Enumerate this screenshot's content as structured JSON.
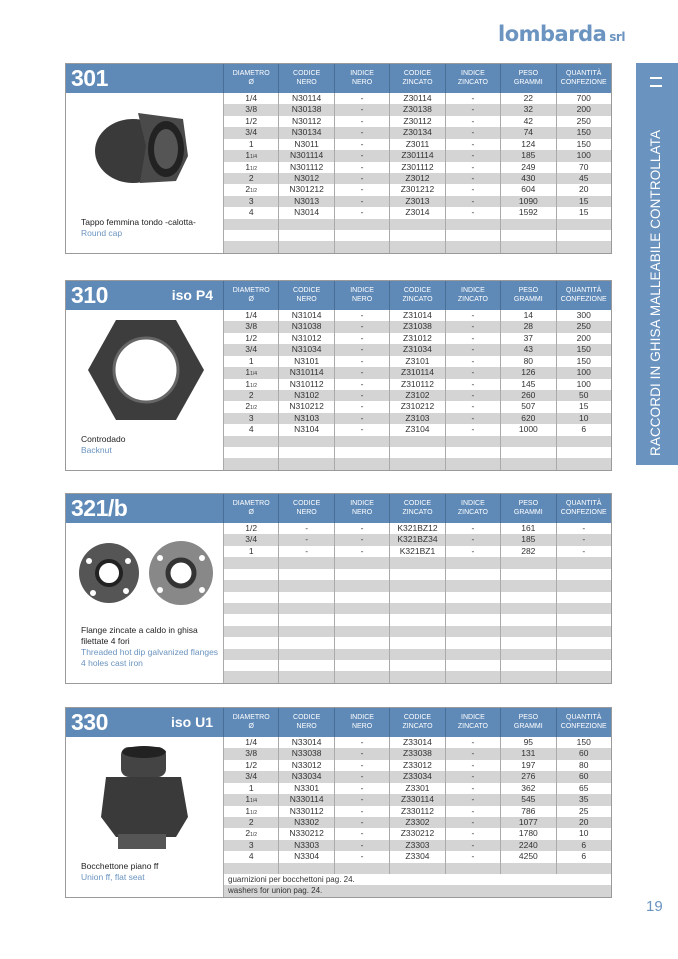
{
  "brand": {
    "name": "lombarda",
    "suffix": "srl",
    "color": "#6a93bf"
  },
  "sidebar": {
    "title": "RACCORDI IN GHISA MALLEABILE CONTROLLATA",
    "icon": "double-bar-icon"
  },
  "page_number": "19",
  "columns": [
    "DIAMETRO Ø",
    "CODICE NERO",
    "INDICE NERO",
    "CODICE ZINCATO",
    "INDICE ZINCATO",
    "PESO GRAMMI",
    "QUANTITÀ CONFEZIONE"
  ],
  "sections": [
    {
      "code": "301",
      "iso": "",
      "desc_it": "Tappo femmina tondo -calotta-",
      "desc_en": "Round cap",
      "image": "round-cap",
      "rows": [
        [
          "1/4",
          "N30114",
          "-",
          "Z30114",
          "-",
          "22",
          "700"
        ],
        [
          "3/8",
          "N30138",
          "-",
          "Z30138",
          "-",
          "32",
          "200"
        ],
        [
          "1/2",
          "N30112",
          "-",
          "Z30112",
          "-",
          "42",
          "250"
        ],
        [
          "3/4",
          "N30134",
          "-",
          "Z30134",
          "-",
          "74",
          "150"
        ],
        [
          "1",
          "N3011",
          "-",
          "Z3011",
          "-",
          "124",
          "150"
        ],
        [
          "1 1/4",
          "N301114",
          "-",
          "Z301114",
          "-",
          "185",
          "100"
        ],
        [
          "1 1/2",
          "N301112",
          "-",
          "Z301112",
          "-",
          "249",
          "70"
        ],
        [
          "2",
          "N3012",
          "-",
          "Z3012",
          "-",
          "430",
          "45"
        ],
        [
          "2 1/2",
          "N301212",
          "-",
          "Z301212",
          "-",
          "604",
          "20"
        ],
        [
          "3",
          "N3013",
          "-",
          "Z3013",
          "-",
          "1090",
          "15"
        ],
        [
          "4",
          "N3014",
          "-",
          "Z3014",
          "-",
          "1592",
          "15"
        ]
      ],
      "notes": []
    },
    {
      "code": "310",
      "iso": "iso P4",
      "desc_it": "Controdado",
      "desc_en": "Backnut",
      "image": "backnut",
      "rows": [
        [
          "1/4",
          "N31014",
          "-",
          "Z31014",
          "-",
          "14",
          "300"
        ],
        [
          "3/8",
          "N31038",
          "-",
          "Z31038",
          "-",
          "28",
          "250"
        ],
        [
          "1/2",
          "N31012",
          "-",
          "Z31012",
          "-",
          "37",
          "200"
        ],
        [
          "3/4",
          "N31034",
          "-",
          "Z31034",
          "-",
          "43",
          "150"
        ],
        [
          "1",
          "N3101",
          "-",
          "Z3101",
          "-",
          "80",
          "150"
        ],
        [
          "1 1/4",
          "N310114",
          "-",
          "Z310114",
          "-",
          "126",
          "100"
        ],
        [
          "1 1/2",
          "N310112",
          "-",
          "Z310112",
          "-",
          "145",
          "100"
        ],
        [
          "2",
          "N3102",
          "-",
          "Z3102",
          "-",
          "260",
          "50"
        ],
        [
          "2 1/2",
          "N310212",
          "-",
          "Z310212",
          "-",
          "507",
          "15"
        ],
        [
          "3",
          "N3103",
          "-",
          "Z3103",
          "-",
          "620",
          "10"
        ],
        [
          "4",
          "N3104",
          "-",
          "Z3104",
          "-",
          "1000",
          "6"
        ]
      ],
      "notes": []
    },
    {
      "code": "321/b",
      "iso": "",
      "desc_it": "Flange zincate a caldo in ghisa filettate 4 fori",
      "desc_en": "Threaded hot dip galvanized flanges 4 holes cast iron",
      "image": "flanges",
      "rows": [
        [
          "1/2",
          "-",
          "-",
          "K321BZ12",
          "-",
          "161",
          "-"
        ],
        [
          "3/4",
          "-",
          "-",
          "K321BZ34",
          "-",
          "185",
          "-"
        ],
        [
          "1",
          "-",
          "-",
          "K321BZ1",
          "-",
          "282",
          "-"
        ]
      ],
      "notes": []
    },
    {
      "code": "330",
      "iso": "iso U1",
      "desc_it": "Bocchettone piano ff",
      "desc_en": "Union ff, flat seat",
      "image": "union",
      "rows": [
        [
          "1/4",
          "N33014",
          "-",
          "Z33014",
          "-",
          "95",
          "150"
        ],
        [
          "3/8",
          "N33038",
          "-",
          "Z33038",
          "-",
          "131",
          "60"
        ],
        [
          "1/2",
          "N33012",
          "-",
          "Z33012",
          "-",
          "197",
          "80"
        ],
        [
          "3/4",
          "N33034",
          "-",
          "Z33034",
          "-",
          "276",
          "60"
        ],
        [
          "1",
          "N3301",
          "-",
          "Z3301",
          "-",
          "362",
          "65"
        ],
        [
          "1 1/4",
          "N330114",
          "-",
          "Z330114",
          "-",
          "545",
          "35"
        ],
        [
          "1 1/2",
          "N330112",
          "-",
          "Z330112",
          "-",
          "786",
          "25"
        ],
        [
          "2",
          "N3302",
          "-",
          "Z3302",
          "-",
          "1077",
          "20"
        ],
        [
          "2 1/2",
          "N330212",
          "-",
          "Z330212",
          "-",
          "1780",
          "10"
        ],
        [
          "3",
          "N3303",
          "-",
          "Z3303",
          "-",
          "2240",
          "6"
        ],
        [
          "4",
          "N3304",
          "-",
          "Z3304",
          "-",
          "4250",
          "6"
        ]
      ],
      "notes": [
        "guarnizioni per bocchettoni pag. 24.",
        "washers for union pag. 24."
      ]
    }
  ]
}
